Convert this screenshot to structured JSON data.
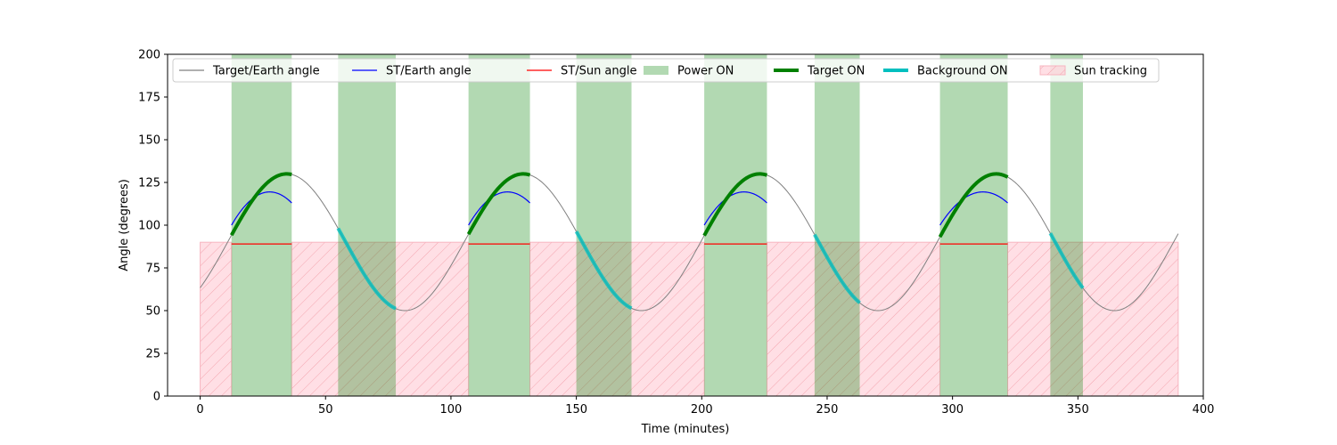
{
  "chart_data": {
    "type": "line",
    "title": "",
    "xlabel": "Time (minutes)",
    "ylabel": "Angle (degrees)",
    "xlim": [
      -13,
      400
    ],
    "ylim": [
      0,
      200
    ],
    "xticks": [
      0,
      50,
      100,
      150,
      200,
      250,
      300,
      350,
      400
    ],
    "yticks": [
      0,
      25,
      50,
      75,
      100,
      125,
      150,
      175,
      200
    ],
    "legend_placement": "top",
    "legend": [
      {
        "label": "Target/Earth angle",
        "kind": "line",
        "color": "#808080"
      },
      {
        "label": "ST/Earth angle",
        "kind": "line",
        "color": "#0000ff"
      },
      {
        "label": "ST/Sun angle",
        "kind": "line",
        "color": "#ff0000"
      },
      {
        "label": "Power ON",
        "kind": "patch",
        "color": "#008000"
      },
      {
        "label": "Target ON",
        "kind": "thickline",
        "color": "#008000"
      },
      {
        "label": "Background ON",
        "kind": "thickline",
        "color": "#00bfbf"
      },
      {
        "label": "Sun tracking",
        "kind": "hatch",
        "color": "#ffc0cb"
      }
    ],
    "power_on_intervals": [
      [
        12.5,
        36.5
      ],
      [
        55,
        78
      ],
      [
        107,
        131.5
      ],
      [
        150,
        172
      ],
      [
        201,
        226
      ],
      [
        245,
        263
      ],
      [
        295,
        322
      ],
      [
        339,
        352
      ]
    ],
    "sun_tracking_intervals": [
      [
        0,
        12.5
      ],
      [
        36.5,
        107
      ],
      [
        131.5,
        201
      ],
      [
        226,
        295
      ],
      [
        322,
        390
      ]
    ],
    "sun_tracking_level": 90,
    "target_earth_angle": {
      "model": "sinusoid",
      "center": 90,
      "amplitude": 40,
      "period_minutes": 94.3,
      "peak_time_minutes": 34.5,
      "x_range": [
        0,
        390
      ]
    },
    "st_earth_angle_segments": [
      [
        12.5,
        36.5
      ],
      [
        107,
        131.5
      ],
      [
        201,
        226
      ],
      [
        295,
        322
      ]
    ],
    "st_earth_angle_levels": {
      "start": 100,
      "peak": 117,
      "end": 113
    },
    "st_sun_angle": {
      "value": 89,
      "segments": [
        [
          12.5,
          36.5
        ],
        [
          107,
          131.5
        ],
        [
          201,
          226
        ],
        [
          295,
          322
        ]
      ]
    },
    "target_on_segments": [
      [
        12.5,
        36.5
      ],
      [
        107,
        131.5
      ],
      [
        201,
        226
      ],
      [
        295,
        322
      ]
    ],
    "background_on_segments": [
      [
        55,
        78
      ],
      [
        150,
        172
      ],
      [
        245,
        263
      ],
      [
        339,
        352
      ]
    ]
  }
}
